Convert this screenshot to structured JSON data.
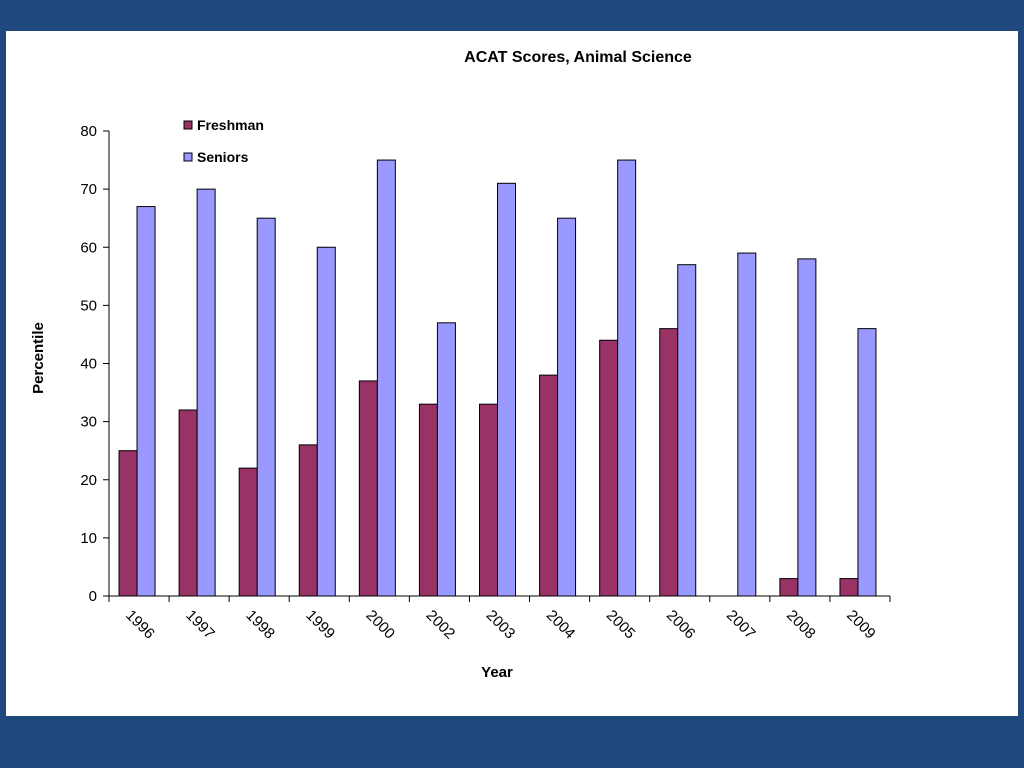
{
  "chart_data": {
    "type": "bar",
    "title": "ACAT Scores, Animal Science",
    "xlabel": "Year",
    "ylabel": "Percentile",
    "categories": [
      "1996",
      "1997",
      "1998",
      "1999",
      "2000",
      "2002",
      "2003",
      "2004",
      "2005",
      "2006",
      "2007",
      "2008",
      "2009"
    ],
    "series": [
      {
        "name": "Freshman",
        "color": "#993366",
        "values": [
          25,
          32,
          22,
          26,
          37,
          33,
          33,
          38,
          44,
          46,
          0,
          3,
          3
        ]
      },
      {
        "name": "Seniors",
        "color": "#9999FF",
        "values": [
          67,
          70,
          65,
          60,
          75,
          47,
          71,
          65,
          75,
          57,
          59,
          58,
          46
        ]
      }
    ],
    "ylim": [
      0,
      80
    ],
    "yticks": [
      0,
      10,
      20,
      30,
      40,
      50,
      60,
      70,
      80
    ],
    "grid": false,
    "legend_position": "top-left"
  }
}
